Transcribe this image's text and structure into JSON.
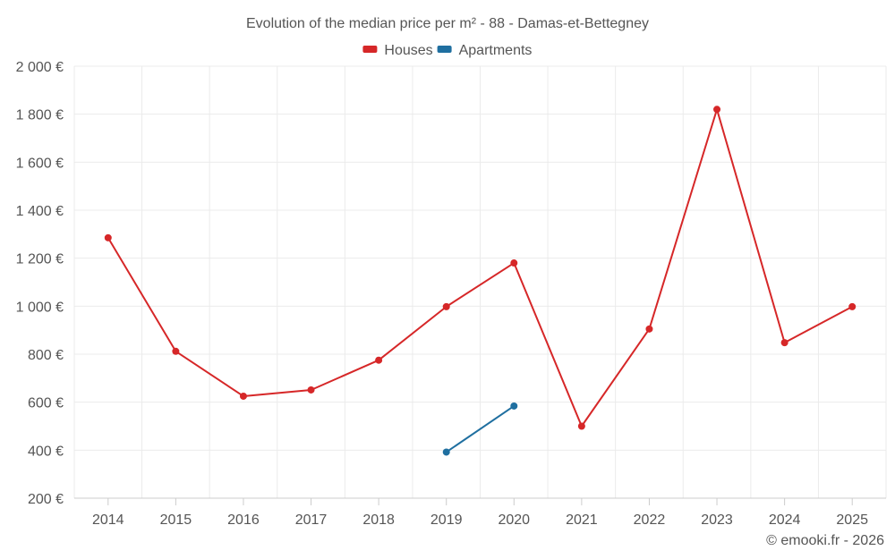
{
  "chart_data": {
    "type": "line",
    "title": "Evolution of the median price per m² - 88 - Damas-et-Bettegney",
    "categories": [
      "2014",
      "2015",
      "2016",
      "2017",
      "2018",
      "2019",
      "2020",
      "2021",
      "2022",
      "2023",
      "2024",
      "2025"
    ],
    "y_ticks": [
      200,
      400,
      600,
      800,
      1000,
      1200,
      1400,
      1600,
      1800,
      2000
    ],
    "y_tick_labels": [
      "200 €",
      "400 €",
      "600 €",
      "800 €",
      "1 000 €",
      "1 200 €",
      "1 400 €",
      "1 600 €",
      "1 800 €",
      "2 000 €"
    ],
    "ylim": [
      200,
      2000
    ],
    "grid": true,
    "legend_position": "top-center",
    "series": [
      {
        "name": "Houses",
        "color": "#d62728",
        "values": [
          1285,
          812,
          625,
          651,
          775,
          998,
          1180,
          500,
          905,
          1820,
          848,
          998
        ]
      },
      {
        "name": "Apartments",
        "color": "#1f6fa0",
        "values": [
          null,
          null,
          null,
          null,
          null,
          392,
          584,
          null,
          null,
          null,
          null,
          null
        ]
      }
    ],
    "credit": "© emooki.fr - 2026"
  }
}
